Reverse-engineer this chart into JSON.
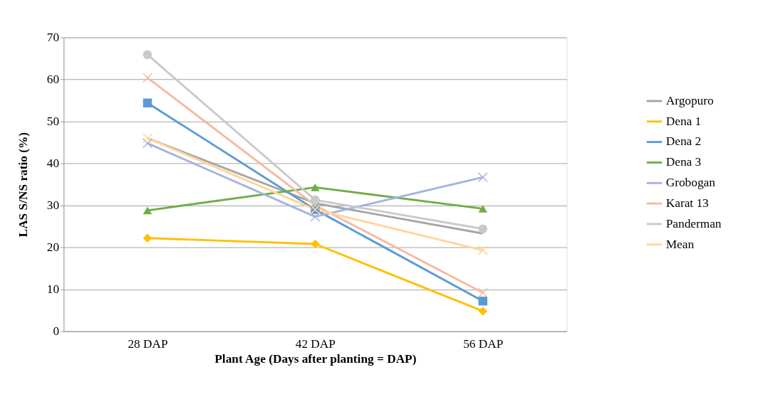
{
  "chart_data": {
    "type": "line",
    "xlabel": "Plant Age (Days after planting = DAP)",
    "ylabel": "LAS  S/NS ratio (%)",
    "categories": [
      "28 DAP",
      "42 DAP",
      "56 DAP"
    ],
    "ylim": [
      0,
      70
    ],
    "yticks": [
      0,
      10,
      20,
      30,
      40,
      50,
      60,
      70
    ],
    "grid": "y",
    "legend": "right",
    "series": [
      {
        "name": "Argopuro",
        "color": "#a5a5a5",
        "marker": "none",
        "values": [
          46.0,
          30.5,
          23.3
        ]
      },
      {
        "name": "Dena 1",
        "color": "#ffc000",
        "marker": "diamond",
        "values": [
          22.2,
          20.8,
          4.8
        ]
      },
      {
        "name": "Dena 2",
        "color": "#5b9bd5",
        "marker": "square",
        "values": [
          54.4,
          29.0,
          7.2
        ]
      },
      {
        "name": "Dena 3",
        "color": "#70ad47",
        "marker": "triangle",
        "values": [
          28.8,
          34.3,
          29.2
        ]
      },
      {
        "name": "Grobogan",
        "color": "#a5b3e0",
        "marker": "cross",
        "values": [
          44.8,
          27.3,
          36.7
        ]
      },
      {
        "name": "Karat 13",
        "color": "#f4b9a2",
        "marker": "cross",
        "values": [
          60.4,
          30.0,
          9.2
        ]
      },
      {
        "name": "Panderman",
        "color": "#c9c9c9",
        "marker": "circle",
        "values": [
          65.9,
          31.3,
          24.4
        ]
      },
      {
        "name": "Mean",
        "color": "#ffd699",
        "marker": "cross",
        "values": [
          46.0,
          29.0,
          19.3
        ]
      }
    ]
  }
}
